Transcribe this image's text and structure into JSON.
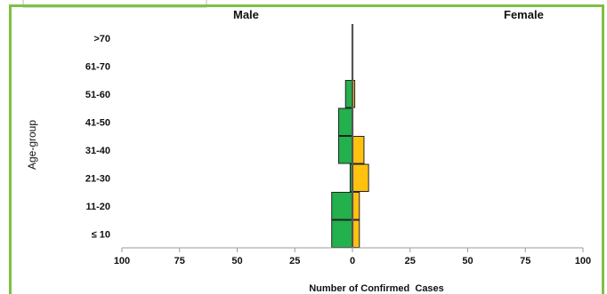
{
  "chart_data": {
    "type": "bar",
    "orientation": "horizontal-population-pyramid",
    "headers": {
      "left": "Male",
      "right": "Female"
    },
    "xlabel": "Number of Confirmed  Cases",
    "ylabel": "Age-group",
    "x_tick_labels": [
      "100",
      "75",
      "50",
      "25",
      "0",
      "25",
      "50",
      "75",
      "100"
    ],
    "x_tick_values": [
      -100,
      -75,
      -50,
      -25,
      0,
      25,
      50,
      75,
      100
    ],
    "xlim": [
      -100,
      100
    ],
    "categories": [
      ">70",
      "61-70",
      "51-60",
      "41-50",
      "31-40",
      "21-30",
      "11-20",
      "≤ 10"
    ],
    "series": [
      {
        "name": "Male",
        "color": "#22b14c",
        "values": [
          0,
          0,
          3,
          6,
          6,
          1,
          9,
          9
        ]
      },
      {
        "name": "Female",
        "color": "#ffc20e",
        "values": [
          0,
          0,
          1,
          0,
          5,
          7,
          3,
          3
        ]
      }
    ],
    "frame_color": "#7dc142"
  }
}
